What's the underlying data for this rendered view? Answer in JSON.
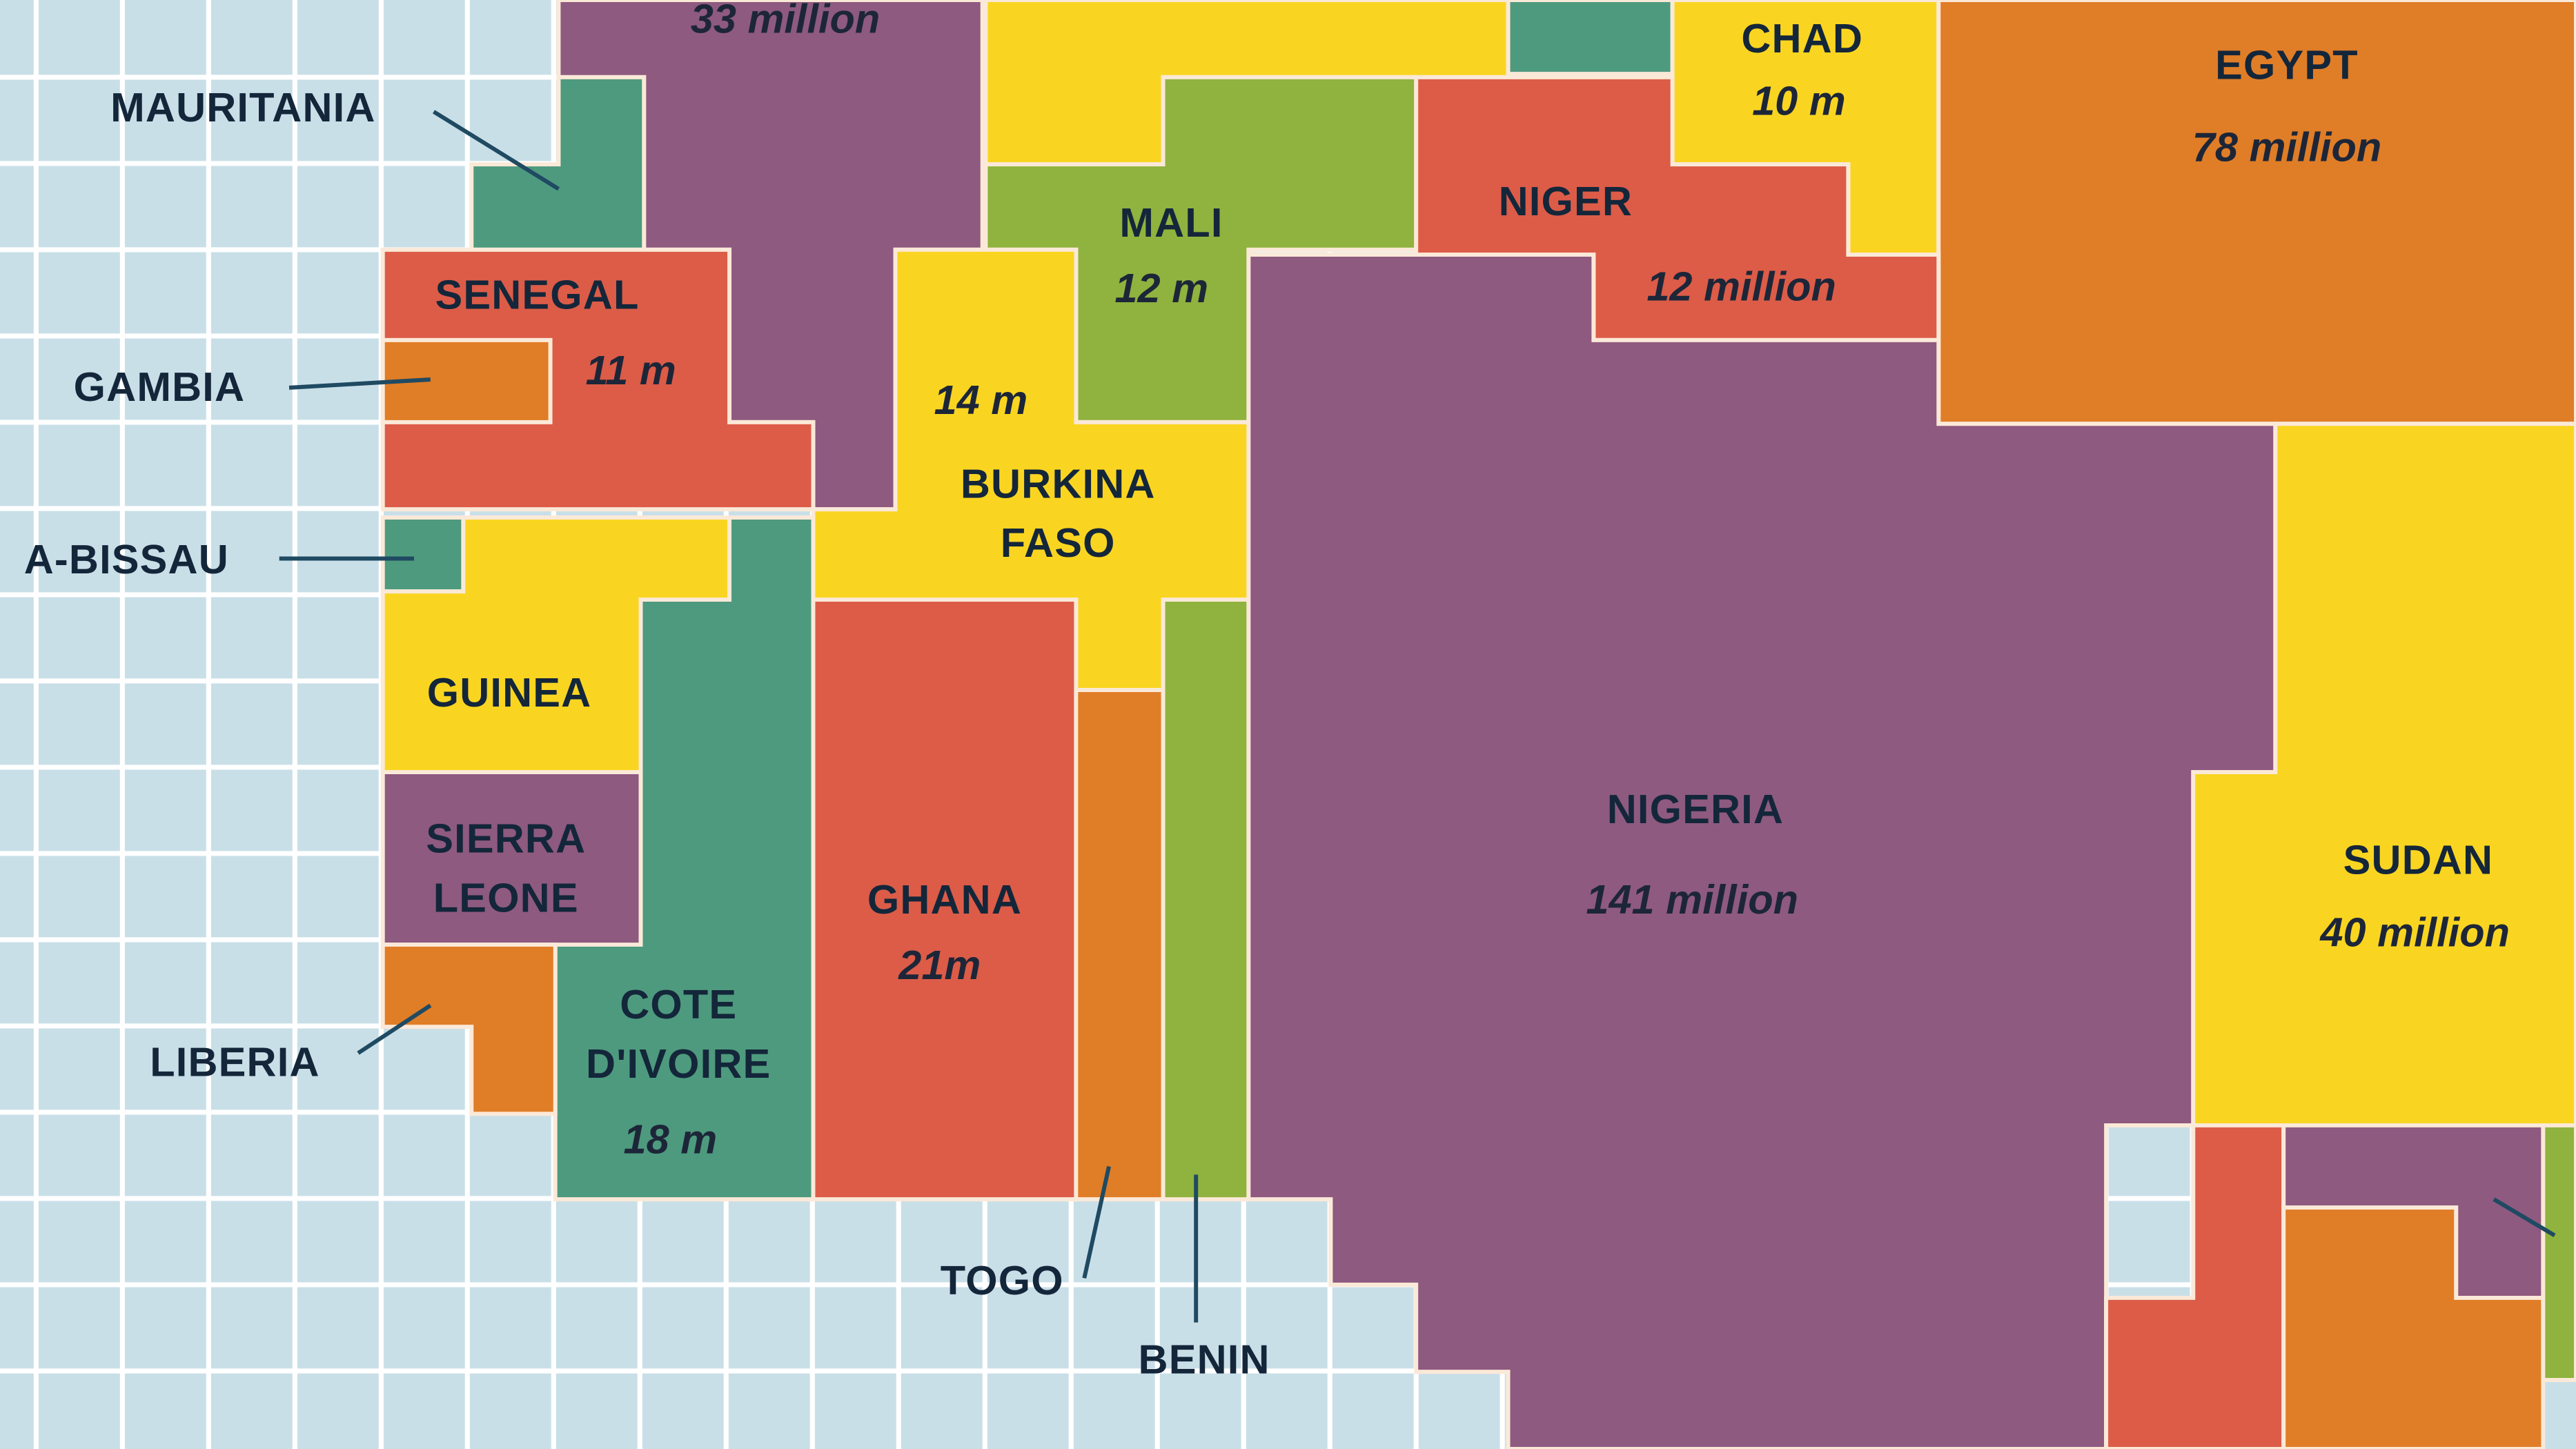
{
  "map": {
    "background_color": "#c9dfe8",
    "grid_color": "#ffffff",
    "regions": {
      "algeria": {
        "population": "33 million",
        "color": "#8e5a80"
      },
      "top_yellow": {
        "color": "#f9d521"
      },
      "top_teal": {
        "color": "#4e9a7e"
      },
      "mauritania": {
        "name": "MAURITANIA",
        "color": "#4e9a7e"
      },
      "chad": {
        "name": "CHAD",
        "population": "10 m",
        "color": "#f9d521"
      },
      "egypt": {
        "name": "EGYPT",
        "population": "78 million",
        "color": "#e07d27"
      },
      "mali": {
        "name": "MALI",
        "population": "12 m",
        "color": "#8fb33e"
      },
      "niger": {
        "name": "NIGER",
        "population": "12 million",
        "color": "#dc5c48"
      },
      "senegal": {
        "name": "SENEGAL",
        "population": "11 m",
        "color": "#dc5c48"
      },
      "gambia": {
        "name": "GAMBIA",
        "color": "#e07d27"
      },
      "burkina_faso": {
        "name_line1": "BURKINA",
        "name_line2": "FASO",
        "population": "14 m",
        "color": "#f9d521"
      },
      "guinea_bissau": {
        "name": "A-BISSAU",
        "color": "#4e9a7e"
      },
      "guinea": {
        "name": "GUINEA",
        "color": "#f9d521"
      },
      "sierra_leone": {
        "name_line1": "SIERRA",
        "name_line2": "LEONE",
        "color": "#8e5a80"
      },
      "liberia": {
        "name": "LIBERIA",
        "color": "#e07d27"
      },
      "cote_divoire": {
        "name_line1": "COTE",
        "name_line2": "D'IVOIRE",
        "population": "18 m",
        "color": "#4e9a7e"
      },
      "ghana": {
        "name": "GHANA",
        "population": "21m",
        "color": "#dc5c48"
      },
      "togo": {
        "name": "TOGO",
        "color": "#e07d27"
      },
      "benin": {
        "name": "BENIN",
        "color": "#8fb33e"
      },
      "nigeria": {
        "name": "NIGERIA",
        "population": "141 million",
        "color": "#8e5a80"
      },
      "sudan": {
        "name": "SUDAN",
        "population": "40 million",
        "color": "#f9d521"
      },
      "br_red": {
        "color": "#dc5c48"
      },
      "br_purple": {
        "color": "#8e5a80"
      },
      "br_orange": {
        "color": "#e07d27"
      },
      "br_green": {
        "color": "#8fb33e"
      }
    }
  }
}
